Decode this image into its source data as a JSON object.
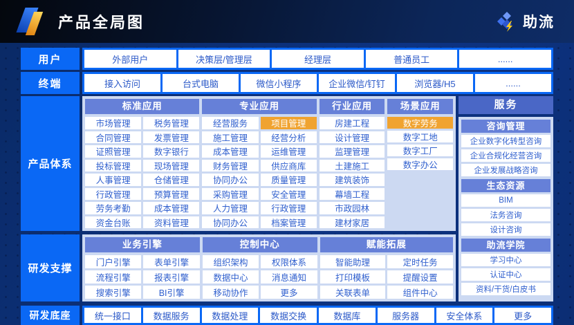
{
  "header": {
    "title": "产品全局图",
    "brand": "助流"
  },
  "users_row": {
    "label": "用户",
    "items": [
      "外部用户",
      "决策层/管理层",
      "经理层",
      "普通员工",
      "......"
    ]
  },
  "terminals_row": {
    "label": "终端",
    "items": [
      "接入访问",
      "台式电脑",
      "微信小程序",
      "企业微信/钉钉",
      "浏览器/H5",
      "......"
    ]
  },
  "product_system": {
    "label": "产品体系",
    "groups": [
      {
        "title": "标准应用",
        "items": [
          "市场管理",
          "税务管理",
          "合同管理",
          "发票管理",
          "证照管理",
          "数字银行",
          "投标管理",
          "现场管理",
          "人事管理",
          "仓储管理",
          "行政管理",
          "预算管理",
          "劳务考勤",
          "成本管理",
          "资金台账",
          "资料管理"
        ]
      },
      {
        "title": "专业应用",
        "items": [
          "经营服务",
          {
            "label": "项目管理",
            "highlight": true
          },
          "施工管理",
          "经营分析",
          "成本管理",
          "运维管理",
          "财务管理",
          "供应商库",
          "协同办公",
          "质量管理",
          "采购管理",
          "安全管理",
          "人力管理",
          "行政管理",
          "协同办公",
          "档案管理"
        ]
      },
      {
        "title": "行业应用",
        "items": [
          "房建工程",
          "设计管理",
          "监理管理",
          "土建施工",
          "建筑装饰",
          "幕墙工程",
          "市政园林",
          "建材家居"
        ]
      },
      {
        "title": "场景应用",
        "items": [
          {
            "label": "数字劳务",
            "highlight": true
          },
          "数字工地",
          "数字工厂",
          "数字办公"
        ]
      }
    ]
  },
  "services": {
    "title": "服务",
    "sections": [
      {
        "title": "咨询管理",
        "items": [
          "企业数字化转型咨询",
          "企业合规化经营咨询",
          "企业发展战略咨询"
        ]
      },
      {
        "title": "生态资源",
        "items": [
          "BIM",
          "法务咨询",
          "设计咨询"
        ]
      },
      {
        "title": "助流学院",
        "items": [
          "学习中心",
          "认证中心",
          "资料/干货/白皮书"
        ]
      }
    ]
  },
  "rd_support": {
    "label": "研发支撑",
    "groups": [
      {
        "title": "业务引擎",
        "items": [
          "门户引擎",
          "表单引擎",
          "流程引擎",
          "报表引擎",
          "搜索引擎",
          "BI引擎"
        ]
      },
      {
        "title": "控制中心",
        "items": [
          "组织架构",
          "权限体系",
          "数据中心",
          "消息通知",
          "移动协作",
          "更多"
        ]
      },
      {
        "title": "赋能拓展",
        "items": [
          "智能助理",
          "定时任务",
          "打印模板",
          "提醒设置",
          "关联表单",
          "组件中心"
        ]
      }
    ]
  },
  "rd_base": {
    "label": "研发底座",
    "items": [
      "统一接口",
      "数据服务",
      "数据处理",
      "数据交换",
      "数据库",
      "服务器",
      "安全体系",
      "更多"
    ]
  },
  "colors": {
    "accent_blue": "#0a68f5",
    "panel_light": "#ccd9f2",
    "group_header_blue": "#6680d8",
    "services_header_blue": "#4a67c6",
    "highlight_orange": "#f0a330",
    "item_text_blue": "#2f5fce",
    "background_navy": "#0c2e74"
  }
}
